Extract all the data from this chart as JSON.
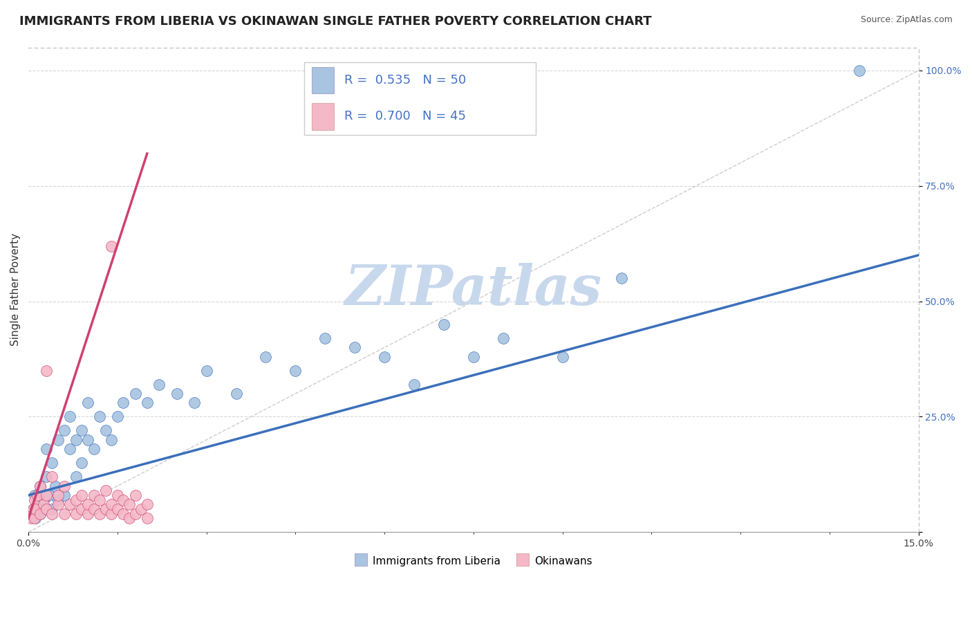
{
  "title": "IMMIGRANTS FROM LIBERIA VS OKINAWAN SINGLE FATHER POVERTY CORRELATION CHART",
  "source": "Source: ZipAtlas.com",
  "ylabel": "Single Father Poverty",
  "xlim": [
    0.0,
    0.15
  ],
  "ylim": [
    0.0,
    1.05
  ],
  "yticks": [
    0.0,
    0.25,
    0.5,
    0.75,
    1.0
  ],
  "ytick_labels": [
    "",
    "25.0%",
    "50.0%",
    "75.0%",
    "100.0%"
  ],
  "blue_R": 0.535,
  "blue_N": 50,
  "pink_R": 0.7,
  "pink_N": 45,
  "blue_color": "#a8c4e0",
  "pink_color": "#f4b8c8",
  "blue_line_color": "#3b6fba",
  "pink_line_color": "#d04070",
  "watermark": "ZIPatlas",
  "watermark_color": "#c8d8ec",
  "legend_label_blue": "Immigrants from Liberia",
  "legend_label_pink": "Okinawans",
  "blue_points_x": [
    0.0008,
    0.001,
    0.0012,
    0.0015,
    0.002,
    0.002,
    0.0025,
    0.003,
    0.003,
    0.0035,
    0.004,
    0.004,
    0.0045,
    0.005,
    0.005,
    0.006,
    0.006,
    0.007,
    0.007,
    0.008,
    0.008,
    0.009,
    0.009,
    0.01,
    0.01,
    0.011,
    0.012,
    0.013,
    0.014,
    0.015,
    0.016,
    0.018,
    0.02,
    0.022,
    0.025,
    0.028,
    0.03,
    0.035,
    0.04,
    0.045,
    0.05,
    0.055,
    0.06,
    0.065,
    0.07,
    0.075,
    0.08,
    0.09,
    0.1,
    0.14
  ],
  "blue_points_y": [
    0.05,
    0.08,
    0.03,
    0.06,
    0.1,
    0.04,
    0.07,
    0.12,
    0.18,
    0.08,
    0.15,
    0.05,
    0.1,
    0.2,
    0.07,
    0.22,
    0.08,
    0.18,
    0.25,
    0.2,
    0.12,
    0.22,
    0.15,
    0.2,
    0.28,
    0.18,
    0.25,
    0.22,
    0.2,
    0.25,
    0.28,
    0.3,
    0.28,
    0.32,
    0.3,
    0.28,
    0.35,
    0.3,
    0.38,
    0.35,
    0.42,
    0.4,
    0.38,
    0.32,
    0.45,
    0.38,
    0.42,
    0.38,
    0.55,
    1.0
  ],
  "pink_points_x": [
    0.0005,
    0.0008,
    0.001,
    0.001,
    0.0012,
    0.0015,
    0.002,
    0.002,
    0.0025,
    0.003,
    0.003,
    0.003,
    0.004,
    0.004,
    0.005,
    0.005,
    0.006,
    0.006,
    0.007,
    0.008,
    0.008,
    0.009,
    0.009,
    0.01,
    0.01,
    0.011,
    0.011,
    0.012,
    0.012,
    0.013,
    0.013,
    0.014,
    0.014,
    0.015,
    0.015,
    0.016,
    0.016,
    0.017,
    0.017,
    0.018,
    0.018,
    0.019,
    0.02,
    0.02,
    0.014
  ],
  "pink_points_y": [
    0.03,
    0.05,
    0.03,
    0.07,
    0.05,
    0.08,
    0.04,
    0.1,
    0.06,
    0.05,
    0.08,
    0.35,
    0.04,
    0.12,
    0.06,
    0.08,
    0.04,
    0.1,
    0.06,
    0.04,
    0.07,
    0.05,
    0.08,
    0.04,
    0.06,
    0.05,
    0.08,
    0.04,
    0.07,
    0.05,
    0.09,
    0.04,
    0.06,
    0.05,
    0.08,
    0.04,
    0.07,
    0.03,
    0.06,
    0.04,
    0.08,
    0.05,
    0.03,
    0.06,
    0.62
  ],
  "blue_trend_x": [
    0.0,
    0.15
  ],
  "blue_trend_y": [
    0.08,
    0.6
  ],
  "pink_trend_x": [
    0.0,
    0.02
  ],
  "pink_trend_y": [
    0.03,
    0.82
  ],
  "dashed_line_x": [
    0.0,
    0.15
  ],
  "dashed_line_y": [
    0.0,
    1.0
  ]
}
